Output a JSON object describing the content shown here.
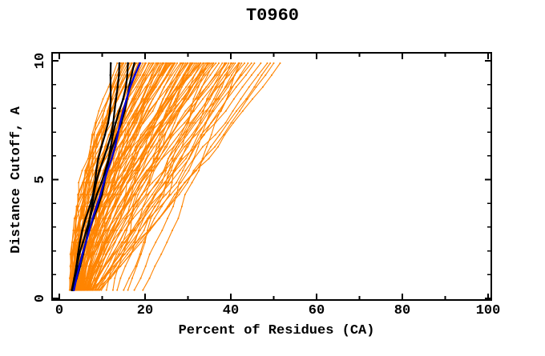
{
  "chart_data": {
    "type": "line",
    "title": "T0960",
    "xlabel": "Percent of Residues (CA)",
    "ylabel": "Distance Cutoff, A",
    "xlim": [
      0,
      100
    ],
    "ylim": [
      0,
      10
    ],
    "xticks_major": [
      0,
      20,
      40,
      60,
      80,
      100
    ],
    "xticks_minor": [
      10,
      30,
      50,
      70,
      90
    ],
    "yticks_major": [
      0,
      5,
      10
    ],
    "yticks_minor": [
      1,
      2,
      3,
      4,
      6,
      7,
      8,
      9
    ],
    "grid": false,
    "legend": "none",
    "colors": {
      "ensemble": "#ff8400",
      "highlight": "#000000",
      "reference": "#0000d4",
      "frame": "#000000",
      "background": "#ffffff"
    },
    "cutoffs": {
      "min": 0.35,
      "max": 9.9,
      "count": 20
    },
    "description": "Cumulative percent of CA residues within distance cutoff; many orange model curves, four black highlighted model curves, one blue reference curve.",
    "black_curves_percent_at_cutoffs": [
      [
        2.9,
        3.4,
        3.9,
        4.4,
        5.0,
        5.6,
        6.2,
        6.9,
        7.5,
        8.1,
        8.7,
        9.4,
        10.1,
        10.7,
        11.2,
        11.6,
        11.9,
        12.0,
        12.0,
        12.0
      ],
      [
        3.0,
        3.6,
        4.2,
        4.8,
        5.5,
        6.1,
        6.8,
        7.5,
        8.2,
        8.9,
        9.6,
        10.3,
        11.0,
        11.8,
        12.5,
        13.0,
        13.4,
        13.7,
        13.9,
        14.0
      ],
      [
        3.1,
        3.8,
        4.5,
        5.2,
        6.0,
        6.7,
        7.4,
        8.2,
        8.9,
        9.7,
        10.4,
        11.2,
        12.0,
        12.7,
        13.4,
        14.1,
        14.8,
        15.4,
        15.8,
        16.0
      ],
      [
        3.2,
        4.0,
        4.8,
        5.6,
        6.4,
        7.2,
        8.0,
        8.8,
        9.6,
        10.3,
        11.1,
        11.9,
        12.7,
        13.5,
        14.3,
        15.0,
        15.7,
        16.3,
        16.9,
        17.5
      ]
    ],
    "blue_curve_percent_at_cutoffs": [
      3.4,
      4.0,
      4.7,
      5.4,
      6.2,
      7.0,
      7.8,
      8.7,
      9.6,
      10.4,
      11.2,
      12.2,
      13.0,
      13.6,
      14.2,
      14.9,
      15.7,
      16.5,
      17.6,
      18.8
    ],
    "orange_curve_params_note": "each entry [percent_at_min_cutoff, percent_at_max_cutoff, shape_exponent, wiggle_amp, wiggle_phase]",
    "orange_curve_params": [
      [
        2.6,
        13.5,
        2.0,
        0.5,
        0.3
      ],
      [
        2.8,
        14.2,
        1.9,
        0.7,
        1.2
      ],
      [
        3.0,
        14.8,
        2.1,
        0.4,
        2.5
      ],
      [
        2.5,
        15.5,
        1.8,
        0.8,
        3.1
      ],
      [
        3.2,
        16.0,
        2.0,
        0.6,
        4.0
      ],
      [
        2.9,
        16.8,
        1.7,
        0.5,
        5.2
      ],
      [
        3.4,
        17.5,
        1.9,
        0.9,
        0.8
      ],
      [
        2.7,
        18.0,
        2.2,
        0.6,
        1.9
      ],
      [
        3.1,
        15.0,
        1.6,
        0.4,
        2.2
      ],
      [
        3.5,
        16.4,
        1.8,
        0.7,
        3.7
      ],
      [
        2.4,
        17.0,
        2.0,
        0.5,
        4.6
      ],
      [
        3.3,
        14.5,
        1.7,
        0.8,
        5.5
      ],
      [
        3.0,
        17.8,
        1.9,
        0.6,
        0.5
      ],
      [
        3.6,
        18.4,
        1.6,
        0.4,
        1.6
      ],
      [
        3.2,
        18.8,
        1.8,
        0.7,
        2.8
      ],
      [
        3.8,
        19.5,
        1.6,
        0.5,
        3.9
      ],
      [
        4.1,
        20.2,
        1.7,
        0.9,
        5.0
      ],
      [
        3.5,
        21.0,
        1.9,
        0.6,
        0.2
      ],
      [
        4.4,
        21.8,
        1.5,
        0.8,
        1.4
      ],
      [
        3.9,
        22.5,
        1.7,
        0.4,
        2.6
      ],
      [
        4.6,
        23.2,
        1.4,
        0.7,
        3.8
      ],
      [
        3.4,
        24.0,
        1.8,
        0.5,
        4.9
      ],
      [
        5.0,
        24.8,
        1.5,
        0.9,
        0.6
      ],
      [
        4.2,
        25.5,
        1.6,
        0.6,
        1.8
      ],
      [
        3.7,
        26.2,
        1.9,
        0.8,
        3.0
      ],
      [
        5.3,
        19.0,
        1.3,
        0.5,
        4.2
      ],
      [
        4.8,
        20.8,
        1.5,
        0.7,
        5.4
      ],
      [
        3.6,
        22.0,
        1.8,
        0.4,
        0.9
      ],
      [
        5.6,
        23.6,
        1.4,
        0.6,
        2.1
      ],
      [
        4.0,
        24.4,
        1.7,
        0.9,
        3.3
      ],
      [
        4.9,
        25.0,
        1.5,
        0.5,
        4.5
      ],
      [
        3.8,
        25.8,
        1.8,
        0.7,
        5.7
      ],
      [
        5.2,
        18.5,
        1.3,
        0.6,
        1.1
      ],
      [
        4.5,
        21.4,
        1.6,
        0.8,
        2.3
      ],
      [
        3.3,
        23.0,
        2.0,
        0.5,
        3.5
      ],
      [
        5.8,
        24.2,
        1.3,
        0.7,
        4.7
      ],
      [
        4.3,
        26.0,
        1.6,
        0.4,
        5.9
      ],
      [
        5.1,
        22.8,
        1.4,
        0.9,
        1.3
      ],
      [
        3.9,
        20.0,
        1.8,
        0.6,
        2.7
      ],
      [
        5.5,
        25.2,
        1.4,
        0.5,
        4.1
      ],
      [
        4.0,
        26.8,
        1.6,
        0.8,
        0.4
      ],
      [
        5.4,
        27.5,
        1.4,
        0.6,
        1.5
      ],
      [
        4.7,
        28.2,
        1.5,
        0.9,
        2.9
      ],
      [
        6.0,
        29.0,
        1.3,
        0.5,
        4.3
      ],
      [
        4.2,
        29.8,
        1.7,
        0.7,
        5.6
      ],
      [
        5.9,
        30.5,
        1.3,
        0.8,
        0.7
      ],
      [
        4.8,
        31.2,
        1.5,
        0.4,
        2.0
      ],
      [
        6.4,
        32.0,
        1.2,
        0.6,
        3.2
      ],
      [
        4.4,
        32.8,
        1.7,
        0.9,
        4.4
      ],
      [
        5.7,
        33.5,
        1.4,
        0.5,
        5.8
      ],
      [
        6.8,
        34.2,
        1.2,
        0.7,
        1.0
      ],
      [
        4.9,
        35.0,
        1.6,
        0.8,
        2.4
      ],
      [
        6.2,
        35.8,
        1.3,
        0.4,
        3.6
      ],
      [
        5.2,
        27.0,
        1.5,
        0.6,
        5.1
      ],
      [
        7.2,
        28.8,
        1.1,
        0.9,
        0.1
      ],
      [
        5.5,
        30.0,
        1.4,
        0.5,
        1.7
      ],
      [
        6.6,
        31.6,
        1.2,
        0.7,
        3.4
      ],
      [
        4.6,
        33.0,
        1.6,
        0.8,
        4.8
      ],
      [
        7.5,
        34.6,
        1.1,
        0.4,
        5.9
      ],
      [
        5.0,
        35.4,
        1.5,
        0.6,
        1.2
      ],
      [
        6.1,
        28.5,
        1.3,
        0.9,
        2.6
      ],
      [
        7.0,
        30.8,
        1.2,
        0.5,
        3.9
      ],
      [
        5.3,
        32.4,
        1.5,
        0.7,
        5.3
      ],
      [
        7.8,
        33.8,
        1.1,
        0.8,
        0.8
      ],
      [
        5.8,
        34.8,
        1.4,
        0.4,
        2.2
      ],
      [
        6.5,
        29.4,
        1.25,
        0.6,
        3.7
      ],
      [
        7.3,
        31.0,
        1.15,
        0.9,
        5.0
      ],
      [
        5.6,
        26.5,
        1.45,
        0.5,
        0.35
      ],
      [
        5.2,
        36.5,
        1.4,
        0.7,
        1.9
      ],
      [
        6.9,
        37.2,
        1.2,
        0.5,
        3.1
      ],
      [
        7.6,
        38.0,
        1.1,
        0.8,
        4.5
      ],
      [
        5.9,
        38.8,
        1.35,
        0.6,
        5.7
      ],
      [
        8.2,
        39.5,
        1.0,
        0.9,
        0.9
      ],
      [
        6.3,
        40.2,
        1.3,
        0.4,
        2.3
      ],
      [
        8.8,
        41.0,
        1.0,
        0.7,
        3.5
      ],
      [
        6.7,
        41.8,
        1.25,
        0.8,
        4.9
      ],
      [
        9.3,
        42.5,
        0.95,
        0.5,
        0.3
      ],
      [
        7.1,
        43.2,
        1.2,
        0.6,
        1.6
      ],
      [
        9.8,
        44.0,
        0.95,
        0.9,
        2.8
      ],
      [
        7.7,
        44.8,
        1.15,
        0.4,
        4.0
      ],
      [
        8.4,
        45.5,
        1.05,
        0.7,
        5.2
      ],
      [
        6.6,
        39.0,
        1.3,
        0.8,
        0.6
      ],
      [
        9.0,
        42.0,
        1.0,
        0.5,
        1.8
      ],
      [
        7.9,
        40.6,
        1.1,
        0.6,
        3.3
      ],
      [
        6.5,
        47.0,
        1.0,
        0.6,
        2.5
      ],
      [
        7.8,
        48.5,
        0.95,
        0.8,
        3.8
      ],
      [
        8.6,
        50.0,
        0.9,
        0.5,
        5.1
      ],
      [
        7.2,
        51.5,
        0.9,
        0.7,
        0.4
      ],
      [
        9.4,
        49.2,
        0.92,
        0.4,
        1.7
      ],
      [
        11.0,
        33.0,
        1.2,
        0.7,
        2.0
      ],
      [
        13.5,
        36.0,
        1.1,
        0.5,
        3.4
      ],
      [
        15.0,
        38.5,
        1.0,
        0.8,
        4.8
      ],
      [
        17.5,
        40.0,
        0.95,
        0.6,
        0.2
      ],
      [
        19.5,
        42.0,
        0.9,
        0.4,
        1.5
      ],
      [
        12.5,
        30.5,
        1.15,
        0.9,
        2.9
      ],
      [
        16.0,
        34.5,
        1.0,
        0.6,
        4.3
      ]
    ]
  }
}
